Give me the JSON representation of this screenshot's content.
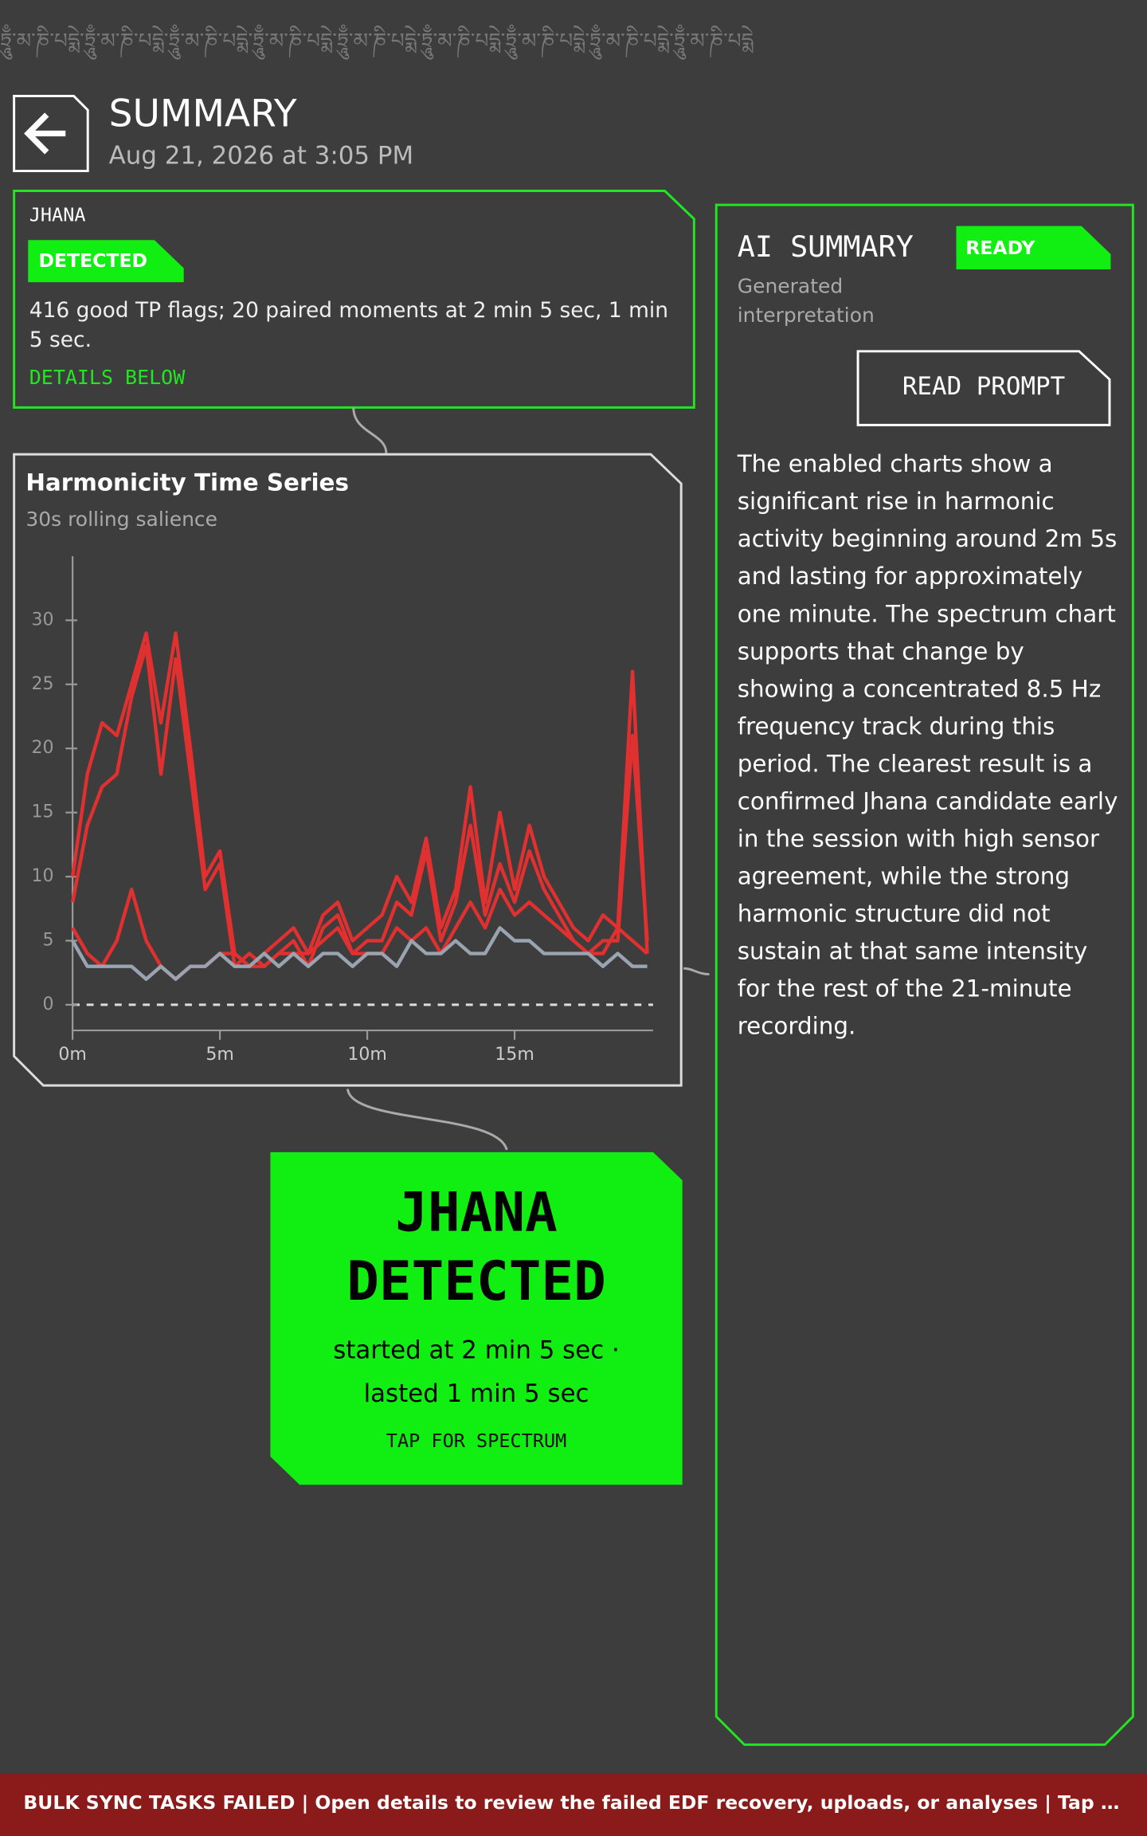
{
  "banner_text": "ཏྲཱུྃ་མ་ཎི་པདྨེ་ཏྲཱུྃ་མ་ཎི་པདྨེ་ཏྲཱུྃ་མ་ཎི་པདྨེ་ཏྲཱུྃ་མ་ཎི་པདྨེ་ཏྲཱུྃ་མ་ཎི་པདྨེ་ཏྲཱུྃ་མ་ཎི་པདྨེ་ཏྲཱུྃ་མ་ཎི་པདྨེ་ཏྲཱུྃ་མ་ཎི་པདྨེ་ཏྲཱུྃ་མ་ཎི་པདྨེ",
  "header": {
    "title": "SUMMARY",
    "date": "Aug 21, 2026 at 3:05 PM"
  },
  "jhana_card": {
    "label": "JHANA",
    "badge": "DETECTED",
    "text": "416 good TP flags; 20 paired moments at 2 min 5 sec, 1 min 5 sec.",
    "link": "DETAILS BELOW"
  },
  "chart": {
    "type": "line",
    "title": "Harmonicity Time Series",
    "subtitle": "30s rolling salience",
    "x": [
      0,
      0.5,
      1,
      1.5,
      2,
      2.5,
      3,
      3.5,
      4,
      4.5,
      5,
      5.5,
      6,
      6.5,
      7,
      7.5,
      8,
      8.5,
      9,
      9.5,
      10,
      10.5,
      11,
      11.5,
      12,
      12.5,
      13,
      13.5,
      14,
      14.5,
      15,
      15.5,
      16,
      16.5,
      17,
      17.5,
      18,
      18.5,
      19,
      19.5
    ],
    "xlim": [
      0,
      19.7
    ],
    "ylim": [
      -2,
      35
    ],
    "xticks": [
      {
        "value": 0,
        "label": "0m"
      },
      {
        "value": 5,
        "label": "5m"
      },
      {
        "value": 10,
        "label": "10m"
      },
      {
        "value": 15,
        "label": "15m"
      }
    ],
    "yticks": [
      0,
      5,
      10,
      15,
      20,
      25,
      30
    ],
    "series": [
      {
        "color": "#e03030",
        "values": [
          10,
          18,
          22,
          21,
          25,
          29,
          22,
          29,
          20,
          10,
          12,
          4,
          3,
          4,
          5,
          6,
          4,
          7,
          8,
          5,
          6,
          7,
          10,
          8,
          13,
          6,
          9,
          17,
          8,
          15,
          9,
          14,
          10,
          8,
          6,
          5,
          7,
          6,
          26,
          4
        ]
      },
      {
        "color": "#e03030",
        "values": [
          8,
          14,
          17,
          18,
          24,
          28,
          18,
          27,
          18,
          9,
          11,
          3,
          4,
          3,
          4,
          5,
          3,
          6,
          7,
          4,
          5,
          5,
          8,
          7,
          12,
          5,
          8,
          14,
          7,
          11,
          8,
          12,
          9,
          7,
          5,
          4,
          5,
          5,
          21,
          5
        ]
      },
      {
        "color": "#e03030",
        "values": [
          6,
          4,
          3,
          5,
          9,
          5,
          3,
          2,
          3,
          3,
          4,
          4,
          3,
          3,
          4,
          4,
          4,
          5,
          6,
          4,
          4,
          4,
          6,
          5,
          6,
          4,
          6,
          8,
          6,
          9,
          7,
          8,
          7,
          6,
          5,
          4,
          4,
          6,
          5,
          4
        ]
      },
      {
        "color": "#9aa3b0",
        "values": [
          5,
          3,
          3,
          3,
          3,
          2,
          3,
          2,
          3,
          3,
          4,
          3,
          3,
          4,
          3,
          4,
          3,
          4,
          4,
          3,
          4,
          4,
          3,
          5,
          4,
          4,
          5,
          4,
          4,
          6,
          5,
          5,
          4,
          4,
          4,
          4,
          3,
          4,
          3,
          3
        ]
      }
    ]
  },
  "result_card": {
    "title_1": "JHANA",
    "title_2": "DETECTED",
    "line_1": "started at 2 min 5 sec ·",
    "line_2": "lasted 1 min 5 sec",
    "action": "TAP FOR SPECTRUM"
  },
  "ai_card": {
    "title": "AI SUMMARY",
    "badge": "READY",
    "subtitle": "Generated interpretation",
    "button": "READ PROMPT",
    "text": "The enabled charts show a significant rise in harmonic activity beginning around 2m 5s and lasting for approximately one minute. The spectrum chart supports that change by showing a concentrated 8.5 Hz frequency track during this period. The clearest result is a confirmed Jhana candidate early in the session with high sensor agreement, while the strong harmonic structure did not sustain at that same intensity for the rest of the 21-minute recording."
  },
  "footer": {
    "text": "BULK SYNC TASKS FAILED | Open details to review the failed EDF recovery, uploads, or analyses | Tap for details"
  }
}
